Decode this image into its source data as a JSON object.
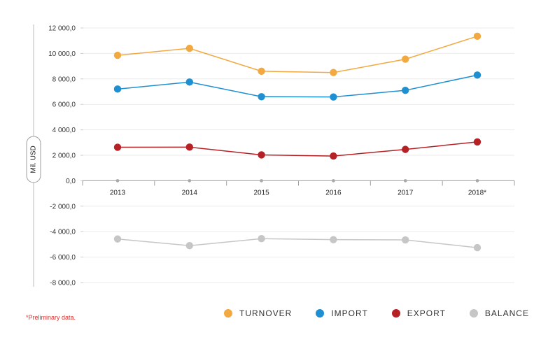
{
  "chart_data": {
    "type": "line",
    "ylabel": "Mil. USD",
    "categories": [
      "2013",
      "2014",
      "2015",
      "2016",
      "2017",
      "2018*"
    ],
    "ylim": [
      -8000,
      12000
    ],
    "yticks": [
      12000,
      10000,
      8000,
      6000,
      4000,
      2000,
      0,
      -2000,
      -4000,
      -6000,
      -8000
    ],
    "ytick_labels": [
      "12 000,0",
      "10 000,0",
      "8 000,0",
      "6 000,0",
      "4 000,0",
      "2 000,0",
      "0,0",
      "-2 000,0",
      "-4 000,0",
      "-6 000,0",
      "-8 000,0"
    ],
    "grid": true,
    "legend_position": "bottom-right",
    "series": [
      {
        "name": "TURNOVER",
        "color": "#f2a941",
        "values": [
          9850,
          10400,
          8600,
          8500,
          9550,
          11350
        ]
      },
      {
        "name": "IMPORT",
        "color": "#1e8fd0",
        "values": [
          7200,
          7750,
          6600,
          6580,
          7100,
          8300
        ]
      },
      {
        "name": "EXPORT",
        "color": "#b62126",
        "values": [
          2630,
          2640,
          2030,
          1940,
          2460,
          3050
        ]
      },
      {
        "name": "BALANCE",
        "color": "#c6c6c6",
        "values": [
          -4580,
          -5100,
          -4550,
          -4630,
          -4650,
          -5260
        ]
      }
    ],
    "footnote": "*Preliminary data."
  }
}
